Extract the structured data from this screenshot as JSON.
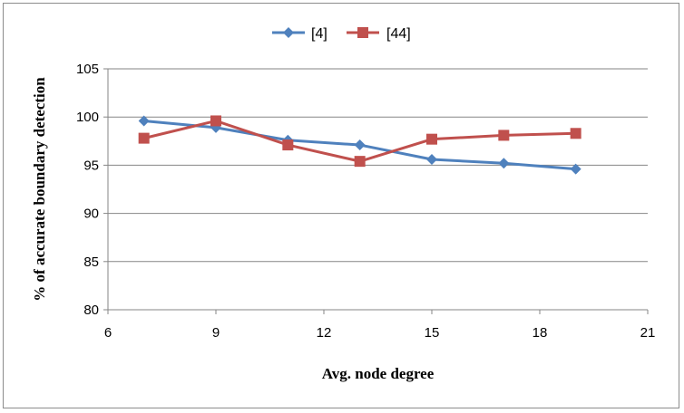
{
  "chart_data": {
    "type": "line",
    "title": "",
    "xlabel": "Avg. node degree",
    "ylabel": "% of accurate boundary detection",
    "xlim": [
      6,
      21
    ],
    "ylim": [
      80,
      105
    ],
    "xticks": [
      6,
      9,
      12,
      15,
      18,
      21
    ],
    "yticks": [
      80,
      85,
      90,
      95,
      100,
      105
    ],
    "grid": "horizontal",
    "legend_position": "top-center",
    "series": [
      {
        "name": "[4]",
        "color": "#4f81bd",
        "marker": "diamond",
        "x": [
          7,
          9,
          11,
          13,
          15,
          17,
          19
        ],
        "y": [
          99.6,
          98.9,
          97.6,
          97.1,
          95.6,
          95.2,
          94.6
        ]
      },
      {
        "name": "[44]",
        "color": "#c0504d",
        "marker": "square",
        "x": [
          7,
          9,
          11,
          13,
          15,
          17,
          19
        ],
        "y": [
          97.8,
          99.6,
          97.1,
          95.4,
          97.7,
          98.1,
          98.3
        ]
      }
    ]
  }
}
